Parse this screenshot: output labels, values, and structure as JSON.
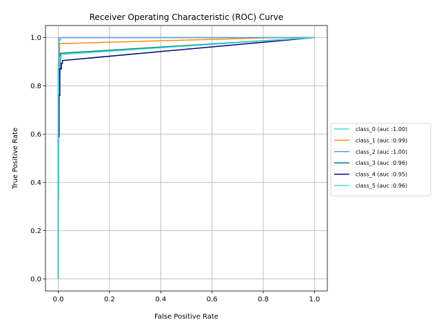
{
  "chart_data": {
    "type": "line",
    "title": "Receiver Operating Characteristic (ROC) Curve",
    "xlabel": "False Positive Rate",
    "ylabel": "True Positive Rate",
    "xlim": [
      -0.05,
      1.05
    ],
    "ylim": [
      -0.05,
      1.05
    ],
    "xticks": [
      0.0,
      0.2,
      0.4,
      0.6,
      0.8,
      1.0
    ],
    "yticks": [
      0.0,
      0.2,
      0.4,
      0.6,
      0.8,
      1.0
    ],
    "grid": true,
    "legend_position": "center-right outside",
    "series": [
      {
        "name": "class_0 (auc :1.00)",
        "color": "#40e0d0",
        "points": [
          [
            0,
            0
          ],
          [
            0,
            0.33
          ],
          [
            0.002,
            0.33
          ],
          [
            0.002,
            0.99
          ],
          [
            0.01,
            0.99
          ],
          [
            0.01,
            1.0
          ],
          [
            1,
            1
          ]
        ]
      },
      {
        "name": "class_1 (auc :0.99)",
        "color": "#ff8c00",
        "points": [
          [
            0,
            0
          ],
          [
            0,
            0.9
          ],
          [
            0.005,
            0.9
          ],
          [
            0.005,
            0.975
          ],
          [
            0.85,
            1.0
          ],
          [
            1,
            1
          ]
        ]
      },
      {
        "name": "class_2 (auc :1.00)",
        "color": "#6495ed",
        "points": [
          [
            0,
            0
          ],
          [
            0,
            0.85
          ],
          [
            0.003,
            0.85
          ],
          [
            0.003,
            1.0
          ],
          [
            1,
            1
          ]
        ]
      },
      {
        "name": "class_3 (auc :0.96)",
        "color": "#008080",
        "points": [
          [
            0,
            0
          ],
          [
            0,
            0.87
          ],
          [
            0.008,
            0.87
          ],
          [
            0.008,
            0.935
          ],
          [
            1,
            1
          ]
        ]
      },
      {
        "name": "class_4 (auc :0.95)",
        "color": "#000080",
        "points": [
          [
            0,
            0
          ],
          [
            0,
            0.59
          ],
          [
            0.003,
            0.59
          ],
          [
            0.003,
            0.76
          ],
          [
            0.006,
            0.76
          ],
          [
            0.006,
            0.87
          ],
          [
            0.012,
            0.87
          ],
          [
            0.012,
            0.893
          ],
          [
            0.016,
            0.893
          ],
          [
            0.016,
            0.905
          ],
          [
            1,
            1
          ]
        ]
      },
      {
        "name": "class_5 (auc :0.96)",
        "color": "#40e0d0",
        "points": [
          [
            0,
            0
          ],
          [
            0,
            0.88
          ],
          [
            0.006,
            0.88
          ],
          [
            0.006,
            0.92
          ],
          [
            0.012,
            0.92
          ],
          [
            0.012,
            0.93
          ],
          [
            1,
            1
          ]
        ]
      }
    ]
  }
}
